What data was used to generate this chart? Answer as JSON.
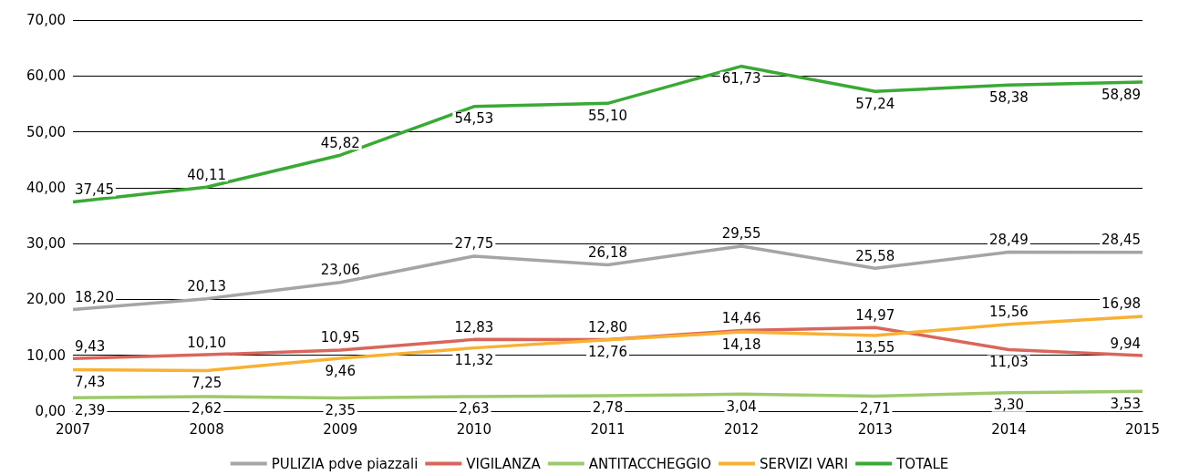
{
  "chart_data": {
    "type": "line",
    "categories": [
      "2007",
      "2008",
      "2009",
      "2010",
      "2011",
      "2012",
      "2013",
      "2014",
      "2015"
    ],
    "series": [
      {
        "name": "PULIZIA pdve piazzali",
        "color": "#a5a5a5",
        "values": [
          18.2,
          20.13,
          23.06,
          27.75,
          26.18,
          29.55,
          25.58,
          28.49,
          28.45
        ],
        "value_labels": [
          "18,20",
          "20,13",
          "23,06",
          "27,75",
          "26,18",
          "29,55",
          "25,58",
          "28,49",
          "28,45"
        ]
      },
      {
        "name": "VIGILANZA",
        "color": "#d9665b",
        "values": [
          9.43,
          10.1,
          10.95,
          12.83,
          12.8,
          14.46,
          14.97,
          11.03,
          9.94
        ],
        "value_labels": [
          "9,43",
          "10,10",
          "10,95",
          "12,83",
          "12,80",
          "14,46",
          "14,97",
          "11,03",
          "9,94"
        ]
      },
      {
        "name": "ANTITACCHEGGIO",
        "color": "#9dc96b",
        "values": [
          2.39,
          2.62,
          2.35,
          2.63,
          2.78,
          3.04,
          2.71,
          3.3,
          3.53
        ],
        "value_labels": [
          "2,39",
          "2,62",
          "2,35",
          "2,63",
          "2,78",
          "3,04",
          "2,71",
          "3,30",
          "3,53"
        ]
      },
      {
        "name": "SERVIZI VARI",
        "color": "#f8b133",
        "values": [
          7.43,
          7.25,
          9.46,
          11.32,
          12.76,
          14.18,
          13.55,
          15.56,
          16.98
        ],
        "value_labels": [
          "7,43",
          "7,25",
          "9,46",
          "11,32",
          "12,76",
          "14,18",
          "13,55",
          "15,56",
          "16,98"
        ]
      },
      {
        "name": "TOTALE",
        "color": "#3aa935",
        "values": [
          37.45,
          40.11,
          45.82,
          54.53,
          55.1,
          61.73,
          57.24,
          58.38,
          58.89
        ],
        "value_labels": [
          "37,45",
          "40,11",
          "45,82",
          "54,53",
          "55,10",
          "61,73",
          "57,24",
          "58,38",
          "58,89"
        ]
      }
    ],
    "ylim": [
      0,
      70
    ],
    "yticks": [
      {
        "value": 0,
        "label": "0,00"
      },
      {
        "value": 10,
        "label": "10,00"
      },
      {
        "value": 20,
        "label": "20,00"
      },
      {
        "value": 30,
        "label": "30,00"
      },
      {
        "value": 40,
        "label": "40,00"
      },
      {
        "value": 50,
        "label": "50,00"
      },
      {
        "value": 60,
        "label": "60,00"
      },
      {
        "value": 70,
        "label": "70,00"
      }
    ],
    "grid": "y",
    "legend": "bottom",
    "marker": "none",
    "line_style": "solid"
  }
}
